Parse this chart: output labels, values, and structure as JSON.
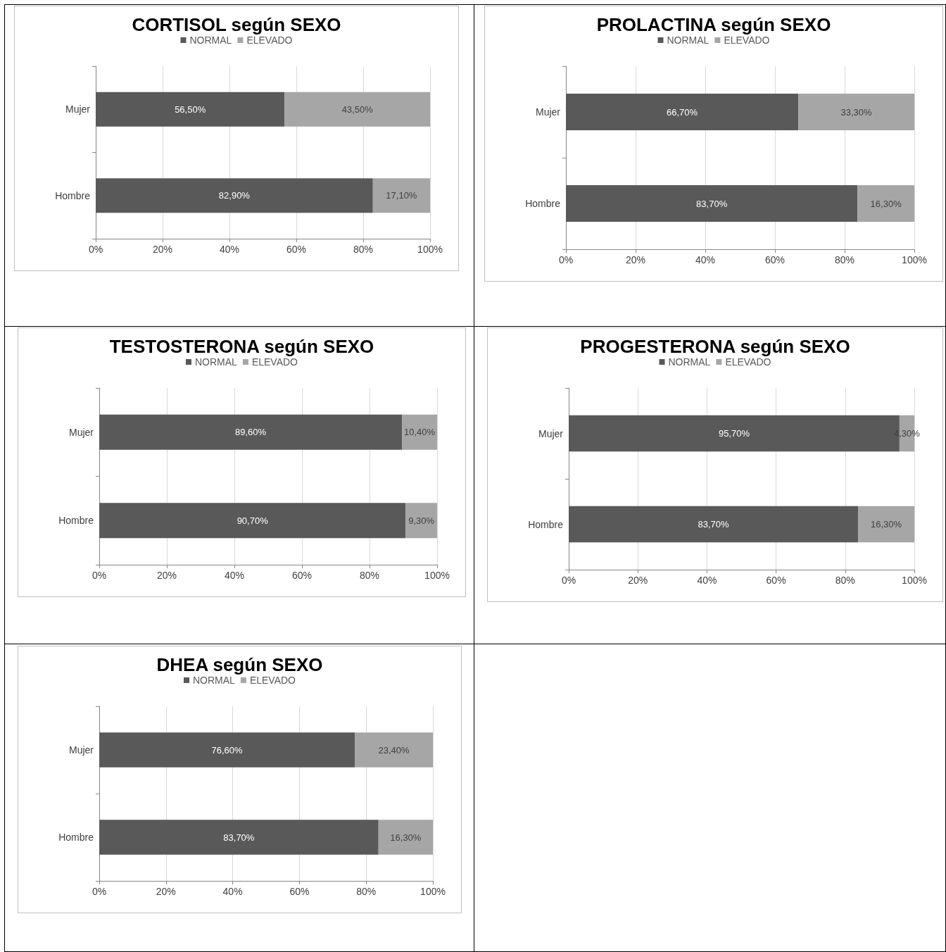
{
  "chart_data": [
    {
      "type": "bar",
      "orientation": "horizontal",
      "stacked": true,
      "title": "CORTISOL según SEXO",
      "categories": [
        "Mujer",
        "Hombre"
      ],
      "legend": "top",
      "grid": "x",
      "xlim": [
        0,
        100
      ],
      "xticks": [
        {
          "value": 0,
          "label": "0%"
        },
        {
          "value": 20,
          "label": "20%"
        },
        {
          "value": 40,
          "label": "40%"
        },
        {
          "value": 60,
          "label": "60%"
        },
        {
          "value": 80,
          "label": "80%"
        },
        {
          "value": 100,
          "label": "100%"
        }
      ],
      "series": [
        {
          "name": "NORMAL",
          "color": "#595959",
          "values": [
            56.5,
            82.9
          ],
          "value_labels": [
            "56,50%",
            "82,90%"
          ]
        },
        {
          "name": "ELEVADO",
          "color": "#a6a6a6",
          "values": [
            43.5,
            17.1
          ],
          "value_labels": [
            "43,50%",
            "17,10%"
          ]
        }
      ]
    },
    {
      "type": "bar",
      "orientation": "horizontal",
      "stacked": true,
      "title": "PROLACTINA según SEXO",
      "categories": [
        "Mujer",
        "Hombre"
      ],
      "legend": "top",
      "grid": "x",
      "xlim": [
        0,
        100
      ],
      "xticks": [
        {
          "value": 0,
          "label": "0%"
        },
        {
          "value": 20,
          "label": "20%"
        },
        {
          "value": 40,
          "label": "40%"
        },
        {
          "value": 60,
          "label": "60%"
        },
        {
          "value": 80,
          "label": "80%"
        },
        {
          "value": 100,
          "label": "100%"
        }
      ],
      "series": [
        {
          "name": "NORMAL",
          "color": "#595959",
          "values": [
            66.7,
            83.7
          ],
          "value_labels": [
            "66,70%",
            "83,70%"
          ]
        },
        {
          "name": "ELEVADO",
          "color": "#a6a6a6",
          "values": [
            33.3,
            16.3
          ],
          "value_labels": [
            "33,30%",
            "16,30%"
          ]
        }
      ]
    },
    {
      "type": "bar",
      "orientation": "horizontal",
      "stacked": true,
      "title": "TESTOSTERONA según SEXO",
      "categories": [
        "Mujer",
        "Hombre"
      ],
      "legend": "top",
      "grid": "x",
      "xlim": [
        0,
        100
      ],
      "xticks": [
        {
          "value": 0,
          "label": "0%"
        },
        {
          "value": 20,
          "label": "20%"
        },
        {
          "value": 40,
          "label": "40%"
        },
        {
          "value": 60,
          "label": "60%"
        },
        {
          "value": 80,
          "label": "80%"
        },
        {
          "value": 100,
          "label": "100%"
        }
      ],
      "series": [
        {
          "name": "NORMAL",
          "color": "#595959",
          "values": [
            89.6,
            90.7
          ],
          "value_labels": [
            "89,60%",
            "90,70%"
          ]
        },
        {
          "name": "ELEVADO",
          "color": "#a6a6a6",
          "values": [
            10.4,
            9.3
          ],
          "value_labels": [
            "10,40%",
            "9,30%"
          ]
        }
      ]
    },
    {
      "type": "bar",
      "orientation": "horizontal",
      "stacked": true,
      "title": "PROGESTERONA según SEXO",
      "categories": [
        "Mujer",
        "Hombre"
      ],
      "legend": "top",
      "grid": "x",
      "xlim": [
        0,
        100
      ],
      "xticks": [
        {
          "value": 0,
          "label": "0%"
        },
        {
          "value": 20,
          "label": "20%"
        },
        {
          "value": 40,
          "label": "40%"
        },
        {
          "value": 60,
          "label": "60%"
        },
        {
          "value": 80,
          "label": "80%"
        },
        {
          "value": 100,
          "label": "100%"
        }
      ],
      "series": [
        {
          "name": "NORMAL",
          "color": "#595959",
          "values": [
            95.7,
            83.7
          ],
          "value_labels": [
            "95,70%",
            "83,70%"
          ]
        },
        {
          "name": "ELEVADO",
          "color": "#a6a6a6",
          "values": [
            4.3,
            16.3
          ],
          "value_labels": [
            "4,30%",
            "16,30%"
          ]
        }
      ]
    },
    {
      "type": "bar",
      "orientation": "horizontal",
      "stacked": true,
      "title": "DHEA según SEXO",
      "categories": [
        "Mujer",
        "Hombre"
      ],
      "legend": "top",
      "grid": "x",
      "xlim": [
        0,
        100
      ],
      "xticks": [
        {
          "value": 0,
          "label": "0%"
        },
        {
          "value": 20,
          "label": "20%"
        },
        {
          "value": 40,
          "label": "40%"
        },
        {
          "value": 60,
          "label": "60%"
        },
        {
          "value": 80,
          "label": "80%"
        },
        {
          "value": 100,
          "label": "100%"
        }
      ],
      "series": [
        {
          "name": "NORMAL",
          "color": "#595959",
          "values": [
            76.6,
            83.7
          ],
          "value_labels": [
            "76,60%",
            "83,70%"
          ]
        },
        {
          "name": "ELEVADO",
          "color": "#a6a6a6",
          "values": [
            23.4,
            16.3
          ],
          "value_labels": [
            "23,40%",
            "16,30%"
          ]
        }
      ]
    }
  ]
}
